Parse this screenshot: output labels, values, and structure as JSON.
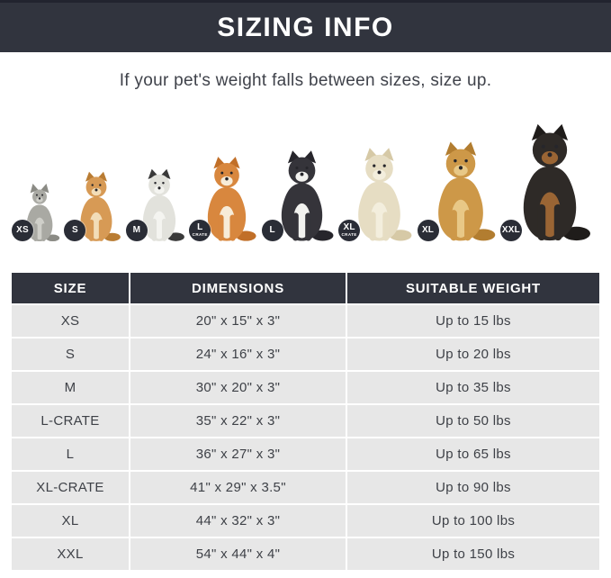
{
  "header": {
    "title": "SIZING INFO"
  },
  "subtitle": "If your pet's weight falls between sizes, size up.",
  "colors": {
    "bar_bg": "#31343e",
    "bar_top_line": "#22242f",
    "row_bg": "#e7e7e7",
    "header_text": "#ffffff",
    "body_text": "#3e4147",
    "badge_bg": "#2a2d36"
  },
  "pets": [
    {
      "animal": "cat",
      "breed": "gray-cat",
      "badge": "XS",
      "badge_sub": "",
      "height": 66,
      "body": "#a9a9a3",
      "ear": "#8b8b85",
      "chest": "#cfcfc9"
    },
    {
      "animal": "dog",
      "breed": "pomeranian",
      "badge": "S",
      "badge_sub": "",
      "height": 80,
      "body": "#d79a55",
      "ear": "#b97c33",
      "chest": "#f2ddb8"
    },
    {
      "animal": "dog",
      "breed": "french-bulldog",
      "badge": "M",
      "badge_sub": "",
      "height": 83,
      "body": "#e2e2dc",
      "ear": "#3a3a3a",
      "chest": "#f4f4f0"
    },
    {
      "animal": "dog",
      "breed": "shiba-inu",
      "badge": "L",
      "badge_sub": "CRATE",
      "height": 97,
      "body": "#d8873e",
      "ear": "#c16f28",
      "chest": "#f7ecd8"
    },
    {
      "animal": "dog",
      "breed": "border-collie",
      "badge": "L",
      "badge_sub": "",
      "height": 104,
      "body": "#35343a",
      "ear": "#26252b",
      "chest": "#f2f2ef"
    },
    {
      "animal": "dog",
      "breed": "labrador",
      "badge": "XL",
      "badge_sub": "CRATE",
      "height": 107,
      "body": "#e6ddc3",
      "ear": "#d6c9a6",
      "chest": "#f3eedd"
    },
    {
      "animal": "dog",
      "breed": "golden-retriever",
      "badge": "XL",
      "badge_sub": "",
      "height": 114,
      "body": "#cd9848",
      "ear": "#b27d30",
      "chest": "#e8c887"
    },
    {
      "animal": "dog",
      "breed": "doberman",
      "badge": "XXL",
      "badge_sub": "",
      "height": 134,
      "body": "#2e2a27",
      "ear": "#1f1c1a",
      "chest": "#9a6534"
    }
  ],
  "table": {
    "columns": [
      "SIZE",
      "DIMENSIONS",
      "SUITABLE WEIGHT"
    ],
    "rows": [
      {
        "size": "XS",
        "dimensions": "20\" x 15\" x 3\"",
        "weight": "Up to 15 lbs"
      },
      {
        "size": "S",
        "dimensions": "24\" x 16\" x 3\"",
        "weight": "Up to 20 lbs"
      },
      {
        "size": "M",
        "dimensions": "30\" x 20\" x 3\"",
        "weight": "Up to 35 lbs"
      },
      {
        "size": "L-CRATE",
        "dimensions": "35\" x 22\" x 3\"",
        "weight": "Up to 50 lbs"
      },
      {
        "size": "L",
        "dimensions": "36\" x 27\" x 3\"",
        "weight": "Up to 65 lbs"
      },
      {
        "size": "XL-CRATE",
        "dimensions": "41\" x 29\" x 3.5\"",
        "weight": "Up to 90 lbs"
      },
      {
        "size": "XL",
        "dimensions": "44\" x 32\" x 3\"",
        "weight": "Up to 100 lbs"
      },
      {
        "size": "XXL",
        "dimensions": "54\" x 44\" x 4\"",
        "weight": "Up to 150 lbs"
      }
    ]
  },
  "chart_data": {
    "type": "table",
    "title": "SIZING INFO",
    "columns": [
      "SIZE",
      "DIMENSIONS",
      "SUITABLE WEIGHT"
    ],
    "rows": [
      [
        "XS",
        "20\" x 15\" x 3\"",
        "Up to 15 lbs"
      ],
      [
        "S",
        "24\" x 16\" x 3\"",
        "Up to 20 lbs"
      ],
      [
        "M",
        "30\" x 20\" x 3\"",
        "Up to 35 lbs"
      ],
      [
        "L-CRATE",
        "35\" x 22\" x 3\"",
        "Up to 50 lbs"
      ],
      [
        "L",
        "36\" x 27\" x 3\"",
        "Up to 65 lbs"
      ],
      [
        "XL-CRATE",
        "41\" x 29\" x 3.5\"",
        "Up to 90 lbs"
      ],
      [
        "XL",
        "44\" x 32\" x 3\"",
        "Up to 100 lbs"
      ],
      [
        "XXL",
        "54\" x 44\" x 4\"",
        "Up to 150 lbs"
      ]
    ]
  }
}
